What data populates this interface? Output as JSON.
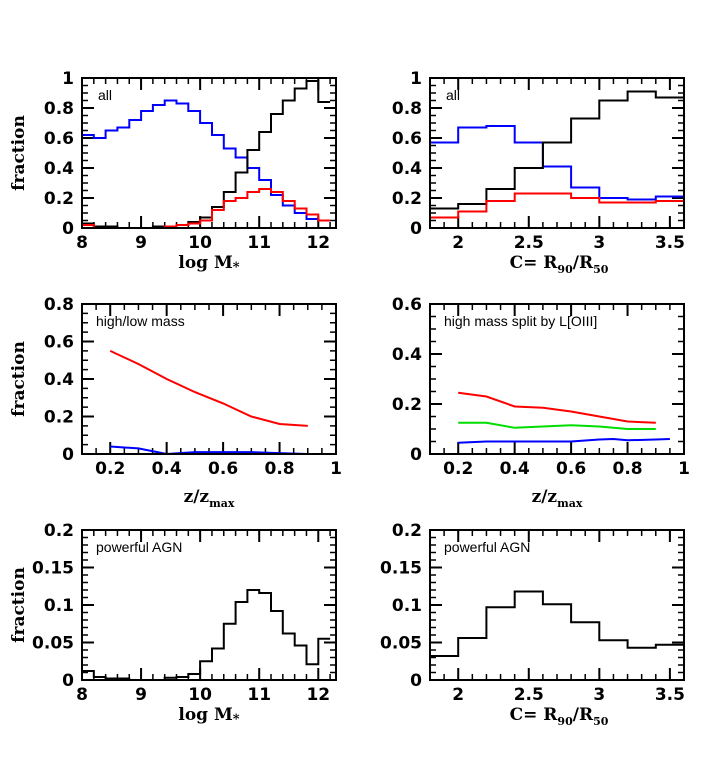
{
  "colors": {
    "black": "#000000",
    "blue": "#0000ff",
    "red": "#ff0000",
    "green": "#00dd00"
  },
  "chart_data": [
    {
      "id": "top-left",
      "type": "line",
      "style": "step",
      "annotation": "all",
      "title": "",
      "xlabel": "log M*",
      "ylabel": "fraction",
      "xlim": [
        8,
        12.3
      ],
      "ylim": [
        0,
        1
      ],
      "xticks": [
        "8",
        "9",
        "10",
        "11",
        "12"
      ],
      "yticks": [
        "0",
        "0.2",
        "0.4",
        "0.6",
        "0.8",
        "1"
      ],
      "bin_edges_start": 8.0,
      "bin_width": 0.2,
      "series": [
        {
          "name": "blue",
          "color": "#0000ff",
          "values": [
            0.62,
            0.6,
            0.65,
            0.67,
            0.72,
            0.78,
            0.82,
            0.85,
            0.83,
            0.78,
            0.7,
            0.62,
            0.53,
            0.47,
            0.4,
            0.32,
            0.22,
            0.15,
            0.1,
            0.06,
            0.05
          ]
        },
        {
          "name": "black",
          "color": "#000000",
          "values": [
            0.03,
            0.01,
            0.01,
            0.0,
            0.0,
            0.0,
            0.01,
            0.01,
            0.02,
            0.04,
            0.07,
            0.14,
            0.24,
            0.37,
            0.52,
            0.64,
            0.76,
            0.85,
            0.93,
            0.98,
            0.84
          ]
        },
        {
          "name": "red",
          "color": "#ff0000",
          "values": [
            0.02,
            0.0,
            0.0,
            0.0,
            0.0,
            0.0,
            0.0,
            0.01,
            0.02,
            0.03,
            0.05,
            0.12,
            0.18,
            0.2,
            0.24,
            0.26,
            0.24,
            0.18,
            0.13,
            0.09,
            0.05
          ]
        }
      ],
      "grid": false,
      "legend": "none"
    },
    {
      "id": "top-right",
      "type": "line",
      "style": "step",
      "annotation": "all",
      "title": "",
      "xlabel": "C= R90/R50",
      "ylabel": "",
      "xlim": [
        1.8,
        3.6
      ],
      "ylim": [
        0,
        1
      ],
      "xticks": [
        "2",
        "2.5",
        "3",
        "3.5"
      ],
      "yticks": [
        "0",
        "0.2",
        "0.4",
        "0.6",
        "0.8",
        "1"
      ],
      "bin_edges_start": 1.8,
      "bin_width": 0.2,
      "series": [
        {
          "name": "blue",
          "color": "#0000ff",
          "values": [
            0.57,
            0.67,
            0.68,
            0.57,
            0.41,
            0.27,
            0.2,
            0.19,
            0.21
          ]
        },
        {
          "name": "black",
          "color": "#000000",
          "values": [
            0.13,
            0.16,
            0.26,
            0.4,
            0.57,
            0.73,
            0.85,
            0.91,
            0.87
          ]
        },
        {
          "name": "red",
          "color": "#ff0000",
          "values": [
            0.07,
            0.11,
            0.18,
            0.23,
            0.23,
            0.2,
            0.17,
            0.17,
            0.18
          ]
        }
      ],
      "grid": false,
      "legend": "none"
    },
    {
      "id": "middle-left",
      "type": "line",
      "annotation": "high/low mass",
      "title": "",
      "xlabel": "z/z_max",
      "ylabel": "fraction",
      "xlim": [
        0.1,
        1.0
      ],
      "ylim": [
        0,
        0.8
      ],
      "xticks": [
        "0.2",
        "0.4",
        "0.6",
        "0.8",
        "1"
      ],
      "yticks": [
        "0",
        "0.2",
        "0.4",
        "0.6",
        "0.8"
      ],
      "x": [
        0.2,
        0.3,
        0.4,
        0.5,
        0.6,
        0.7,
        0.8,
        0.9
      ],
      "series": [
        {
          "name": "red",
          "color": "#ff0000",
          "values": [
            0.55,
            0.48,
            0.4,
            0.33,
            0.27,
            0.2,
            0.16,
            0.15
          ]
        },
        {
          "name": "blue",
          "color": "#0000ff",
          "values": [
            0.04,
            0.03,
            0.0,
            0.01,
            0.01,
            0.01,
            0.005,
            0.0
          ]
        }
      ],
      "grid": false,
      "legend": "none"
    },
    {
      "id": "middle-right",
      "type": "line",
      "annotation": "high mass split by L[OIII]",
      "title": "",
      "xlabel": "z/z_max",
      "ylabel": "",
      "xlim": [
        0.1,
        1.0
      ],
      "ylim": [
        0,
        0.6
      ],
      "xticks": [
        "0.2",
        "0.4",
        "0.6",
        "0.8",
        "1"
      ],
      "yticks": [
        "0",
        "0.2",
        "0.4",
        "0.6"
      ],
      "series": [
        {
          "name": "red",
          "color": "#ff0000",
          "x": [
            0.2,
            0.3,
            0.4,
            0.5,
            0.6,
            0.7,
            0.8,
            0.9
          ],
          "values": [
            0.245,
            0.23,
            0.19,
            0.185,
            0.17,
            0.15,
            0.13,
            0.125
          ]
        },
        {
          "name": "green",
          "color": "#00dd00",
          "x": [
            0.2,
            0.3,
            0.4,
            0.5,
            0.6,
            0.7,
            0.8,
            0.9
          ],
          "values": [
            0.125,
            0.125,
            0.105,
            0.11,
            0.115,
            0.11,
            0.1,
            0.1
          ]
        },
        {
          "name": "blue",
          "color": "#0000ff",
          "x": [
            0.2,
            0.3,
            0.4,
            0.5,
            0.6,
            0.7,
            0.75,
            0.8,
            0.9,
            0.95
          ],
          "values": [
            0.045,
            0.05,
            0.05,
            0.05,
            0.05,
            0.058,
            0.06,
            0.055,
            0.058,
            0.06
          ]
        }
      ],
      "grid": false,
      "legend": "none"
    },
    {
      "id": "bottom-left",
      "type": "line",
      "style": "step",
      "annotation": "powerful AGN",
      "title": "",
      "xlabel": "log M*",
      "ylabel": "fraction",
      "xlim": [
        8,
        12.3
      ],
      "ylim": [
        0,
        0.2
      ],
      "xticks": [
        "8",
        "9",
        "10",
        "11",
        "12"
      ],
      "yticks": [
        "0",
        "0.05",
        "0.1",
        "0.15",
        "0.2"
      ],
      "bin_edges_start": 8.0,
      "bin_width": 0.2,
      "series": [
        {
          "name": "black",
          "color": "#000000",
          "values": [
            0.012,
            0.004,
            0.002,
            0.002,
            0.0,
            0.0,
            0.0,
            0.003,
            0.004,
            0.008,
            0.025,
            0.042,
            0.075,
            0.104,
            0.12,
            0.116,
            0.092,
            0.062,
            0.046,
            0.021,
            0.055
          ]
        }
      ],
      "grid": false,
      "legend": "none"
    },
    {
      "id": "bottom-right",
      "type": "line",
      "style": "step",
      "annotation": "powerful AGN",
      "title": "",
      "xlabel": "C= R90/R50",
      "ylabel": "",
      "xlim": [
        1.8,
        3.6
      ],
      "ylim": [
        0,
        0.2
      ],
      "xticks": [
        "2",
        "2.5",
        "3",
        "3.5"
      ],
      "yticks": [
        "0",
        "0.05",
        "0.1",
        "0.15",
        "0.2"
      ],
      "bin_edges_start": 1.8,
      "bin_width": 0.2,
      "series": [
        {
          "name": "black",
          "color": "#000000",
          "values": [
            0.032,
            0.056,
            0.097,
            0.118,
            0.101,
            0.077,
            0.053,
            0.043,
            0.047
          ]
        }
      ],
      "grid": false,
      "legend": "none"
    }
  ],
  "labels": {
    "fraction": "fraction",
    "logm_main": "log M",
    "logm_sub": "*",
    "conc_prefix": "C=  R",
    "conc_sub1": "90",
    "conc_mid": "/R",
    "conc_sub2": "50",
    "z_main": "z/z",
    "z_sub": "max"
  }
}
